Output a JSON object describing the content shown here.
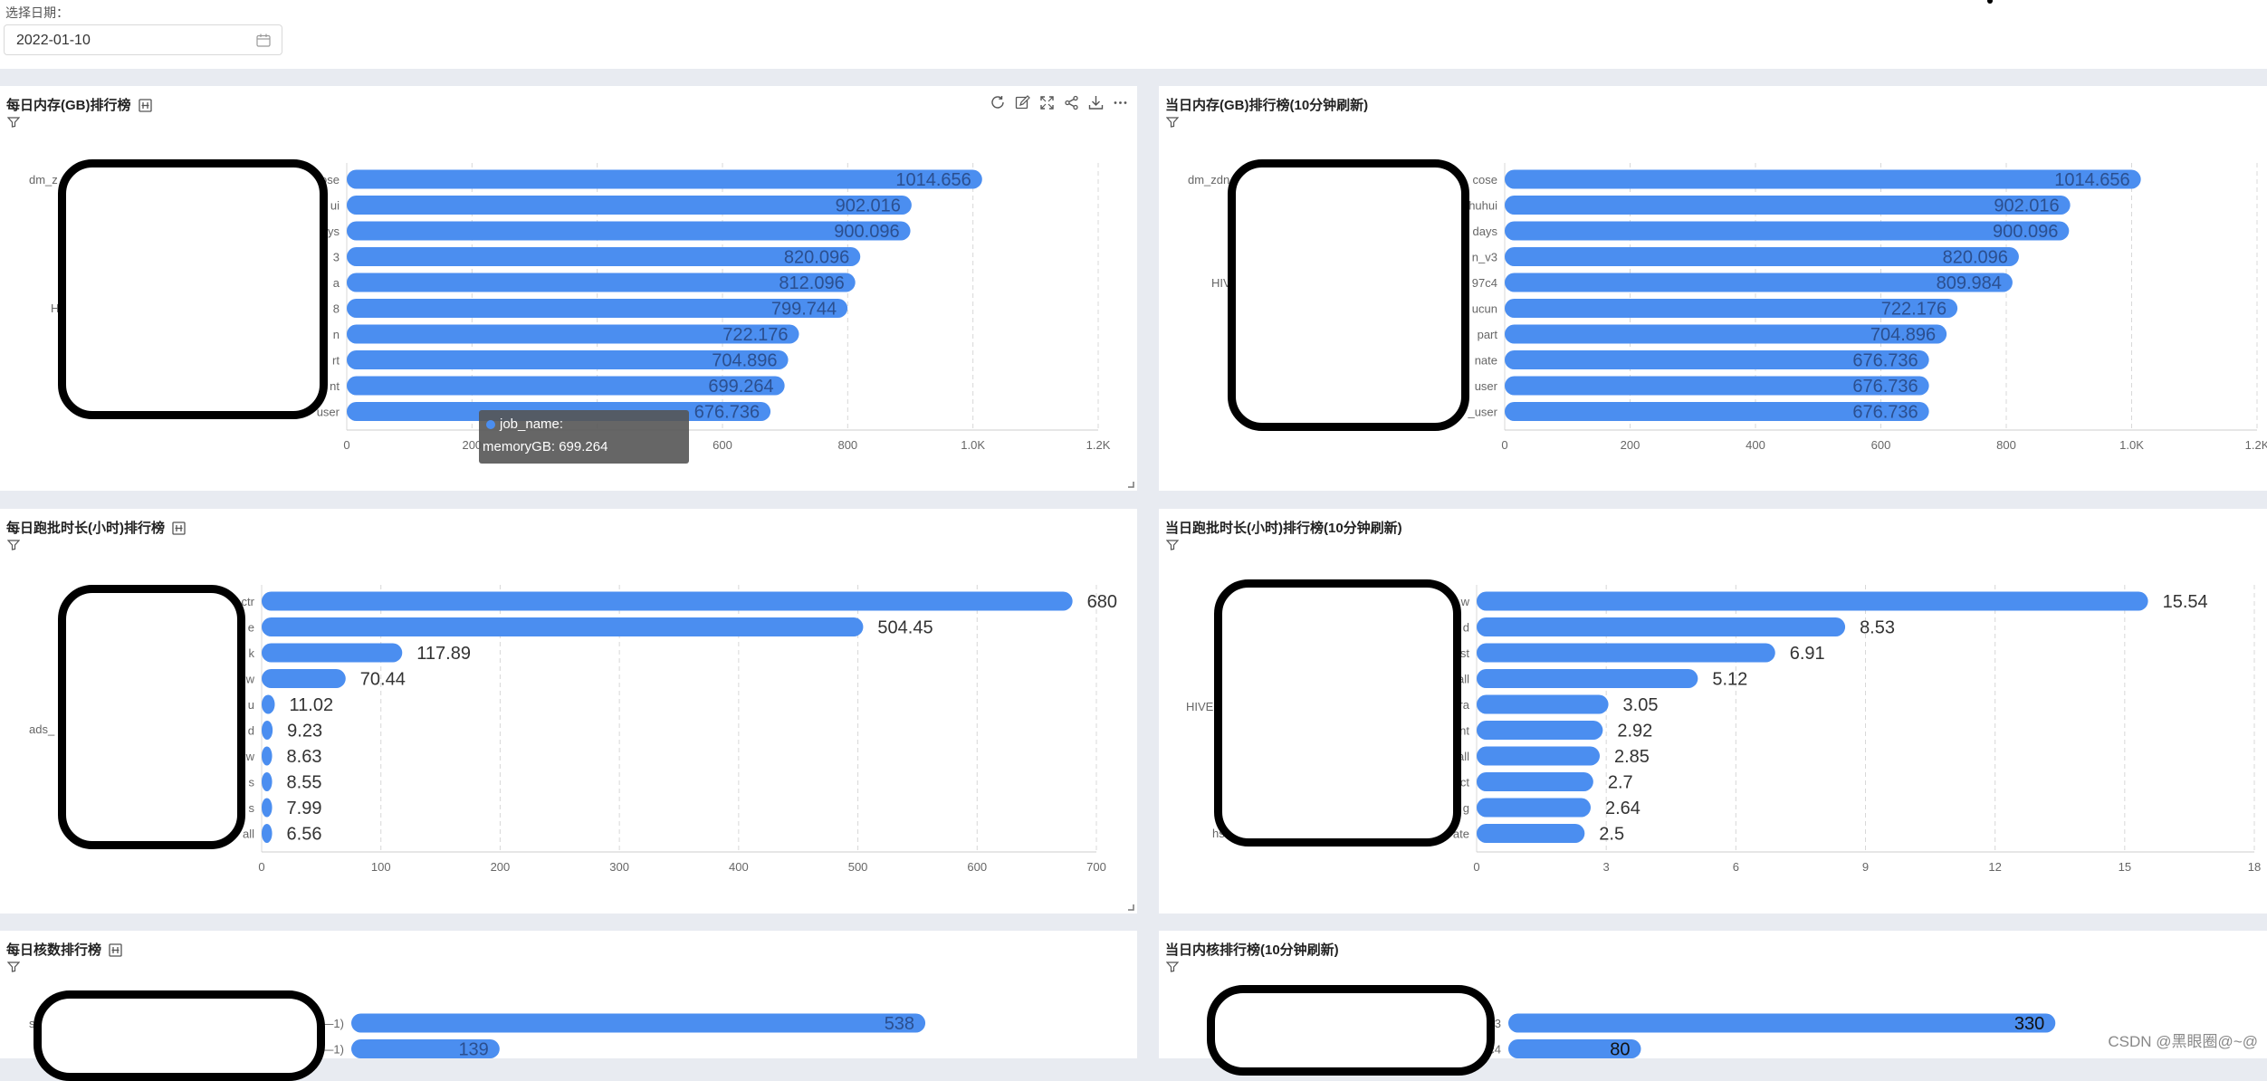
{
  "filter": {
    "label": "选择日期：",
    "date_value": "2022-01-10"
  },
  "colors": {
    "bar": "#4b8ef0",
    "grid": "#d8d8d8",
    "axis_text": "#666"
  },
  "panels": [
    {
      "title": "每日内存(GB)排行榜",
      "has_title_icon": true,
      "has_toolbar": true,
      "resizable": true
    },
    {
      "title": "当日内存(GB)排行榜(10分钟刷新)",
      "has_title_icon": false,
      "has_toolbar": false,
      "resizable": false
    },
    {
      "title": "每日跑批时长(小时)排行榜",
      "has_title_icon": true,
      "has_toolbar": false,
      "resizable": true
    },
    {
      "title": "当日跑批时长(小时)排行榜(10分钟刷新)",
      "has_title_icon": false,
      "has_toolbar": false,
      "resizable": false
    },
    {
      "title": "每日核数排行榜",
      "has_title_icon": true,
      "has_toolbar": false,
      "resizable": false
    },
    {
      "title": "当日内核排行榜(10分钟刷新)",
      "has_title_icon": false,
      "has_toolbar": false,
      "resizable": false
    }
  ],
  "toolbar_icons": [
    "refresh-icon",
    "edit-icon",
    "fullscreen-icon",
    "share-icon",
    "download-icon",
    "more-icon"
  ],
  "tooltip": {
    "key": "job_name:",
    "job_value": "",
    "memory_label": "memoryGB:",
    "memory_value": "699.264"
  },
  "watermark": "CSDN @黑眼圈@~@",
  "chart_data": [
    {
      "type": "bar",
      "orientation": "horizontal",
      "category_labels": [
        "dm_z",
        "ose",
        "ui",
        "ys",
        "3",
        "a",
        "8",
        "n",
        "rt",
        "nt",
        "user"
      ],
      "group_label": "H",
      "categories": [
        "ose",
        "ui",
        "ys",
        "3",
        "a",
        "8",
        "n",
        "rt",
        "nt",
        "user"
      ],
      "values": [
        1014.656,
        902.016,
        900.096,
        820.096,
        812.096,
        799.744,
        722.176,
        704.896,
        699.264,
        676.736
      ],
      "value_labels": [
        "1014.656",
        "902.016",
        "900.096",
        "820.096",
        "812.096",
        "799.744",
        "722.176",
        "704.896",
        "699.264",
        "676.736"
      ],
      "xlim": [
        0,
        1200
      ],
      "xticks": [
        0,
        200,
        400,
        600,
        800,
        1000,
        1200
      ],
      "xtick_labels": [
        "0",
        "200",
        "400",
        "600",
        "800",
        "1.0K",
        "1.2K"
      ],
      "grid": true
    },
    {
      "type": "bar",
      "orientation": "horizontal",
      "category_labels": [
        "dm_zdn",
        "cose",
        "huhui",
        "days",
        "n_v3",
        "97c4",
        "ucun",
        "part",
        "nate",
        "user",
        "_user"
      ],
      "group_label": "HIV",
      "categories": [
        "cose",
        "huhui",
        "days",
        "n_v3",
        "97c4",
        "ucun",
        "part",
        "nate",
        "user",
        "_user"
      ],
      "values": [
        1014.656,
        902.016,
        900.096,
        820.096,
        809.984,
        722.176,
        704.896,
        676.736,
        676.736,
        676.736
      ],
      "value_labels": [
        "1014.656",
        "902.016",
        "900.096",
        "820.096",
        "809.984",
        "722.176",
        "704.896",
        "676.736",
        "676.736",
        "676.736"
      ],
      "xlim": [
        0,
        1200
      ],
      "xticks": [
        0,
        200,
        400,
        600,
        800,
        1000,
        1200
      ],
      "xtick_labels": [
        "0",
        "200",
        "400",
        "600",
        "800",
        "1.0K",
        "1.2K"
      ],
      "grid": true
    },
    {
      "type": "bar",
      "orientation": "horizontal",
      "category_labels": [
        "ctr",
        "e",
        "k",
        "w",
        "u",
        "d",
        "w",
        "s",
        "s",
        "all"
      ],
      "group_label": "ads_",
      "categories": [
        "ctr",
        "e",
        "k",
        "w",
        "u",
        "d",
        "w",
        "s",
        "s",
        "all"
      ],
      "values": [
        680,
        504.45,
        117.89,
        70.44,
        11.02,
        9.23,
        8.63,
        8.55,
        7.99,
        6.56
      ],
      "value_labels": [
        "680",
        "504.45",
        "117.89",
        "70.44",
        "11.02",
        "9.23",
        "8.63",
        "8.55",
        "7.99",
        "6.56"
      ],
      "xlim": [
        0,
        700
      ],
      "xticks": [
        0,
        100,
        200,
        300,
        400,
        500,
        600,
        700
      ],
      "xtick_labels": [
        "0",
        "100",
        "200",
        "300",
        "400",
        "500",
        "600",
        "700"
      ],
      "grid": true
    },
    {
      "type": "bar",
      "orientation": "horizontal",
      "category_labels": [
        "w",
        "d",
        "st",
        "all",
        "ra",
        "nt",
        "all",
        "ct",
        "g",
        "ate"
      ],
      "group_label": "HIVE",
      "extra_label": "hs",
      "categories": [
        "w",
        "d",
        "st",
        "all",
        "ra",
        "nt",
        "all",
        "ct",
        "g",
        "ate"
      ],
      "values": [
        15.54,
        8.53,
        6.91,
        5.12,
        3.05,
        2.92,
        2.85,
        2.7,
        2.64,
        2.5
      ],
      "value_labels": [
        "15.54",
        "8.53",
        "6.91",
        "5.12",
        "3.05",
        "2.92",
        "2.85",
        "2.7",
        "2.64",
        "2.5"
      ],
      "xlim": [
        0,
        18
      ],
      "xticks": [
        0,
        3,
        6,
        9,
        12,
        15,
        18
      ],
      "xtick_labels": [
        "0",
        "3",
        "6",
        "9",
        "12",
        "15",
        "18"
      ],
      "grid": true
    },
    {
      "type": "bar",
      "orientation": "horizontal",
      "category_labels": [
        "s",
        "e—1)",
        "s",
        "ge—1)"
      ],
      "categories": [
        "e—1)",
        "ge—1)"
      ],
      "values": [
        538,
        139
      ],
      "value_labels": [
        "538",
        "139"
      ],
      "xlim": [
        0,
        700
      ],
      "grid": true
    },
    {
      "type": "bar",
      "orientation": "horizontal",
      "category_labels": [
        "3",
        "c4"
      ],
      "categories": [
        "3",
        "c4"
      ],
      "values": [
        330,
        80
      ],
      "value_labels": [
        "330",
        "80"
      ],
      "xlim": [
        0,
        450
      ],
      "grid": true
    }
  ]
}
